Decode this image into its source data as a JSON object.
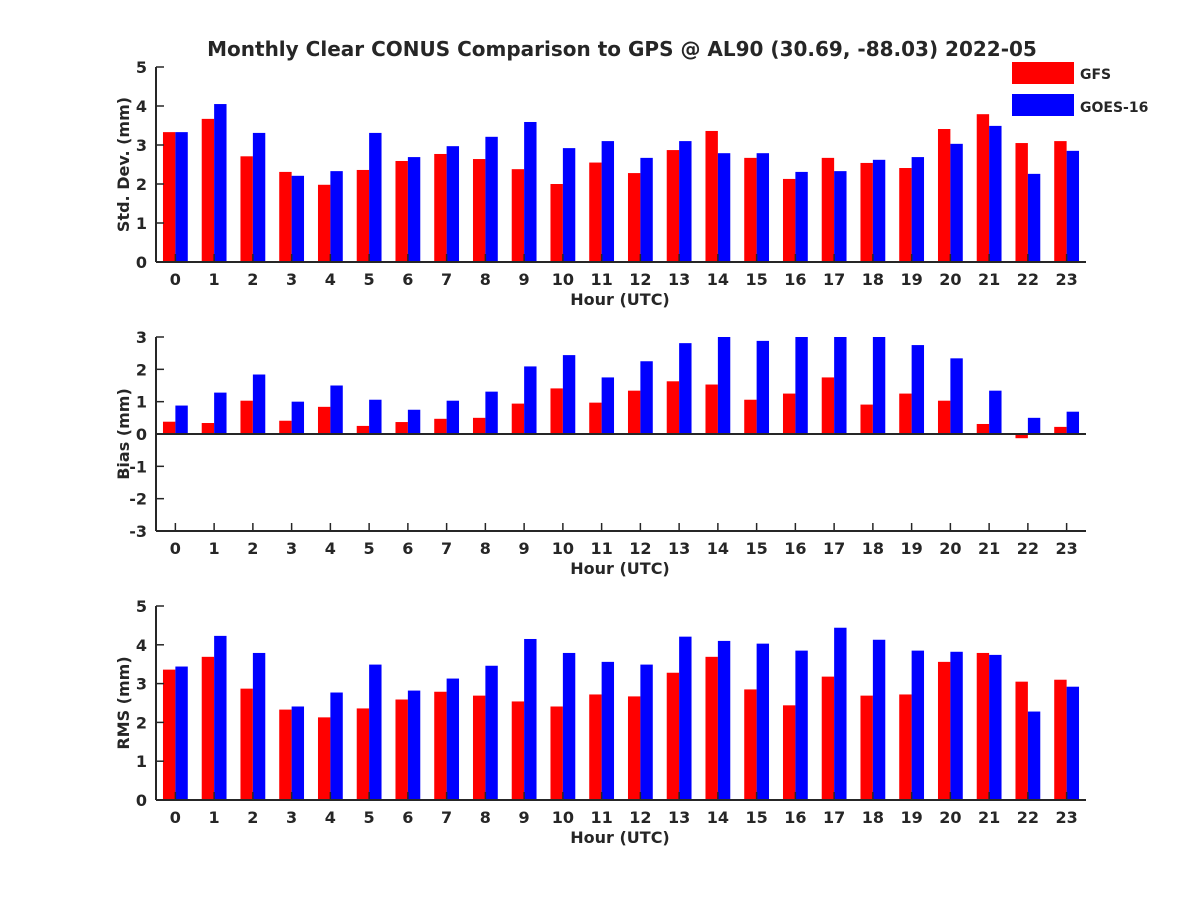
{
  "title": "Monthly Clear CONUS Comparison to GPS @ AL90 (30.69, -88.03) 2022-05",
  "legend": {
    "position": "top-right",
    "entries": [
      "GFS",
      "GOES-16"
    ]
  },
  "colors": {
    "GFS": "#ff0000",
    "GOES-16": "#0000ff",
    "axis": "#262626"
  },
  "chart_data": [
    {
      "type": "bar",
      "ylabel": "Std. Dev. (mm)",
      "xlabel": "Hour (UTC)",
      "ylim": [
        0,
        5
      ],
      "yticks": [
        0,
        1,
        2,
        3,
        4,
        5
      ],
      "categories": [
        "0",
        "1",
        "2",
        "3",
        "4",
        "5",
        "6",
        "7",
        "8",
        "9",
        "10",
        "11",
        "12",
        "13",
        "14",
        "15",
        "16",
        "17",
        "18",
        "19",
        "20",
        "21",
        "22",
        "23"
      ],
      "series": [
        {
          "name": "GFS",
          "values": [
            3.33,
            3.67,
            2.71,
            2.31,
            1.98,
            2.36,
            2.59,
            2.77,
            2.64,
            2.38,
            2.0,
            2.55,
            2.28,
            2.87,
            3.36,
            2.67,
            2.13,
            2.67,
            2.54,
            2.41,
            3.41,
            3.79,
            3.05,
            3.1
          ]
        },
        {
          "name": "GOES-16",
          "values": [
            3.33,
            4.05,
            3.31,
            2.21,
            2.33,
            3.31,
            2.69,
            2.97,
            3.21,
            3.59,
            2.92,
            3.1,
            2.67,
            3.1,
            2.79,
            2.79,
            2.31,
            2.33,
            2.62,
            2.69,
            3.03,
            3.49,
            2.26,
            2.85
          ]
        }
      ]
    },
    {
      "type": "bar",
      "ylabel": "Bias (mm)",
      "xlabel": "Hour (UTC)",
      "ylim": [
        -3,
        3
      ],
      "yticks": [
        -3,
        -2,
        -1,
        0,
        1,
        2,
        3
      ],
      "categories": [
        "0",
        "1",
        "2",
        "3",
        "4",
        "5",
        "6",
        "7",
        "8",
        "9",
        "10",
        "11",
        "12",
        "13",
        "14",
        "15",
        "16",
        "17",
        "18",
        "19",
        "20",
        "21",
        "22",
        "23"
      ],
      "series": [
        {
          "name": "GFS",
          "values": [
            0.38,
            0.34,
            1.03,
            0.41,
            0.84,
            0.25,
            0.37,
            0.47,
            0.5,
            0.94,
            1.41,
            0.97,
            1.34,
            1.63,
            1.53,
            1.06,
            1.25,
            1.75,
            0.91,
            1.25,
            1.03,
            0.31,
            -0.13,
            0.22
          ]
        },
        {
          "name": "GOES-16",
          "values": [
            0.88,
            1.28,
            1.84,
            1.0,
            1.5,
            1.06,
            0.75,
            1.03,
            1.31,
            2.09,
            2.44,
            1.75,
            2.25,
            2.81,
            3.0,
            2.88,
            3.0,
            3.0,
            3.0,
            2.75,
            2.34,
            1.34,
            0.5,
            0.69
          ]
        }
      ]
    },
    {
      "type": "bar",
      "ylabel": "RMS (mm)",
      "xlabel": "Hour (UTC)",
      "ylim": [
        0,
        5
      ],
      "yticks": [
        0,
        1,
        2,
        3,
        4,
        5
      ],
      "categories": [
        "0",
        "1",
        "2",
        "3",
        "4",
        "5",
        "6",
        "7",
        "8",
        "9",
        "10",
        "11",
        "12",
        "13",
        "14",
        "15",
        "16",
        "17",
        "18",
        "19",
        "20",
        "21",
        "22",
        "23"
      ],
      "series": [
        {
          "name": "GFS",
          "values": [
            3.36,
            3.69,
            2.87,
            2.33,
            2.13,
            2.36,
            2.59,
            2.79,
            2.69,
            2.54,
            2.41,
            2.72,
            2.67,
            3.28,
            3.69,
            2.85,
            2.44,
            3.18,
            2.69,
            2.72,
            3.56,
            3.79,
            3.05,
            3.1
          ]
        },
        {
          "name": "GOES-16",
          "values": [
            3.44,
            4.23,
            3.79,
            2.41,
            2.77,
            3.49,
            2.82,
            3.13,
            3.46,
            4.15,
            3.79,
            3.56,
            3.49,
            4.21,
            4.1,
            4.03,
            3.85,
            4.44,
            4.13,
            3.85,
            3.82,
            3.74,
            2.28,
            2.92
          ]
        }
      ]
    }
  ]
}
